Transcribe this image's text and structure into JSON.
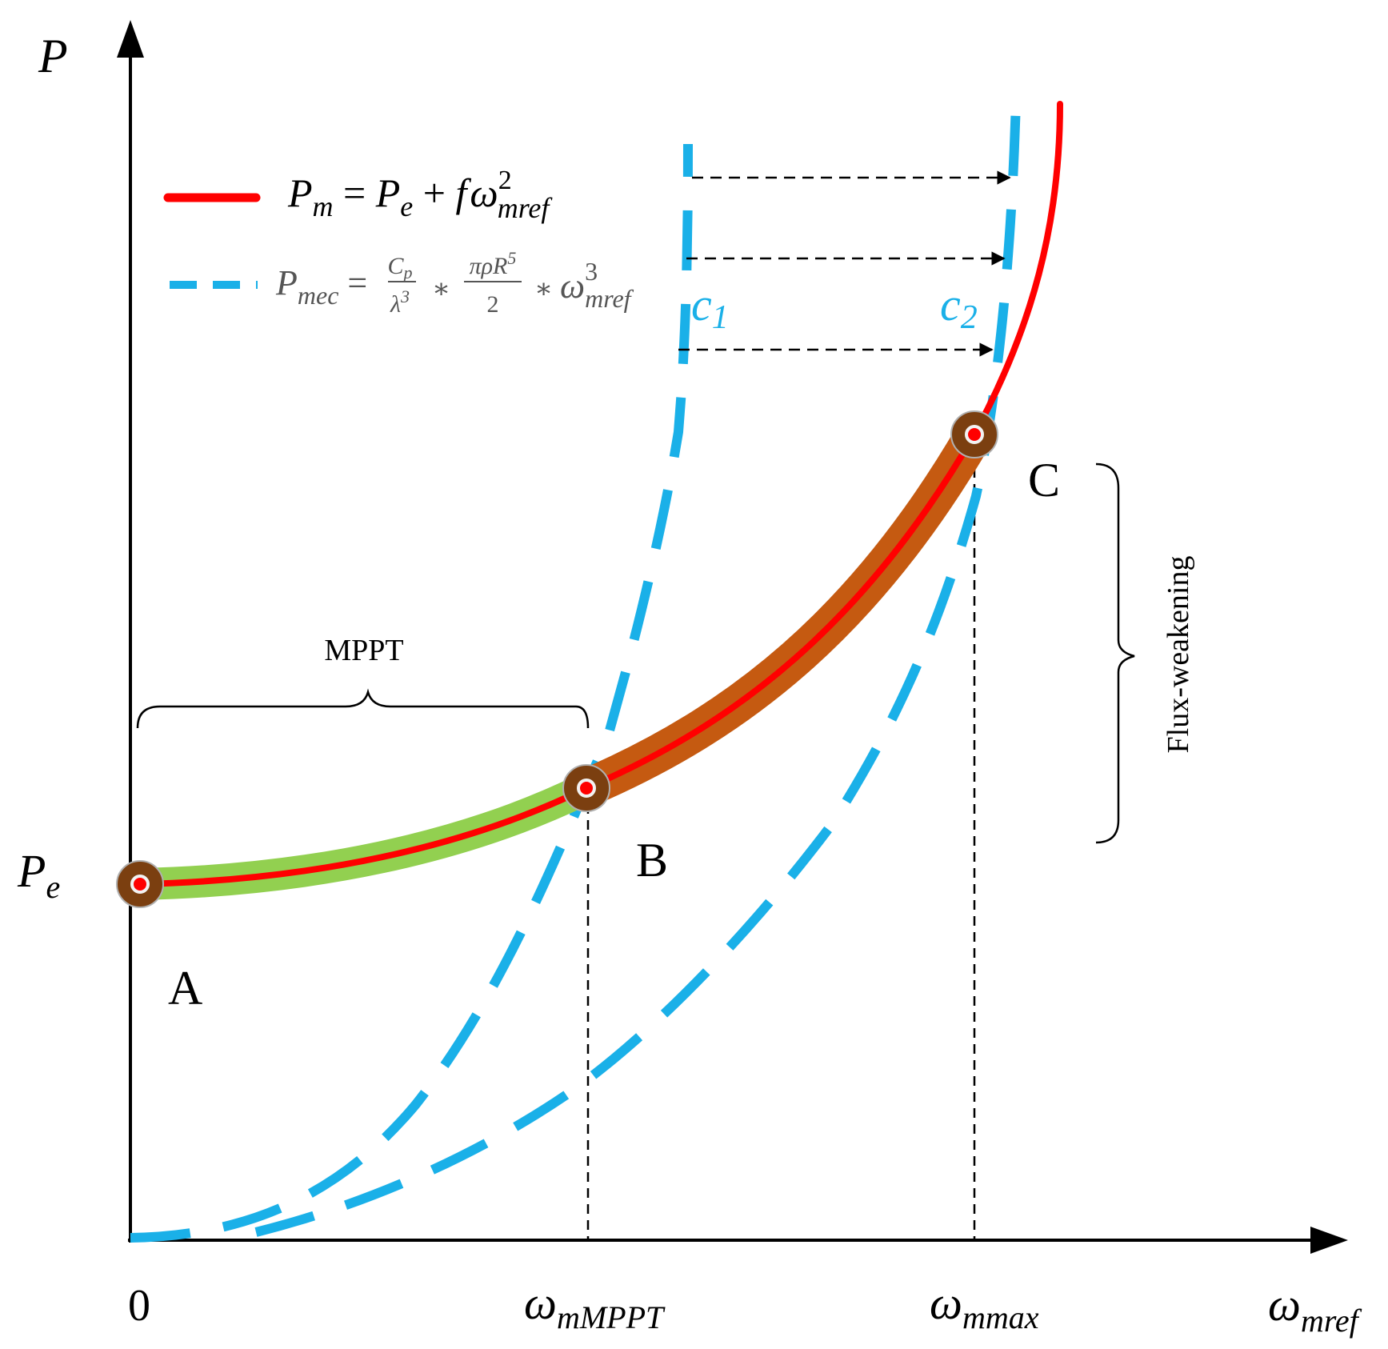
{
  "axes": {
    "y_label": "P",
    "x_label_main": "ω",
    "x_label_sub": "mref",
    "origin_label": "0",
    "pe_main": "P",
    "pe_sub": "e",
    "omega_mppt_main": "ω",
    "omega_mppt_sub": "mMPPT",
    "omega_max_main": "ω",
    "omega_max_sub": "mmax"
  },
  "legend": {
    "red_formula": {
      "lhs_main": "P",
      "lhs_sub": "m",
      "eq": " = ",
      "pe_main": "P",
      "pe_sub": "e",
      "plus": " + ",
      "f": "f",
      "omega": "ω",
      "sup": "2",
      "sub": "mref"
    },
    "blue_formula": {
      "lhs_main": "P",
      "lhs_sub": "mec",
      "eq": " = ",
      "frac1_num": "C",
      "frac1_num_sub": "p",
      "frac1_den": "λ",
      "frac1_den_sup": "3",
      "times": "∗",
      "frac2_num": "πρR",
      "frac2_num_sup": "5",
      "frac2_den": "2",
      "omega": "ω",
      "sup": "3",
      "sub": "mref"
    }
  },
  "curve_labels": {
    "c1_main": "c",
    "c1_sub": "1",
    "c2_main": "c",
    "c2_sub": "2"
  },
  "points": {
    "A": "A",
    "B": "B",
    "C": "C"
  },
  "regions": {
    "mppt": "MPPT",
    "flux_weakening": "Flux-weakening"
  },
  "colors": {
    "red": "#ff0000",
    "blue": "#1ab0e8",
    "green": "#92d050",
    "orange": "#c55a11",
    "marker": "#7b3f10",
    "axis": "#000000"
  }
}
